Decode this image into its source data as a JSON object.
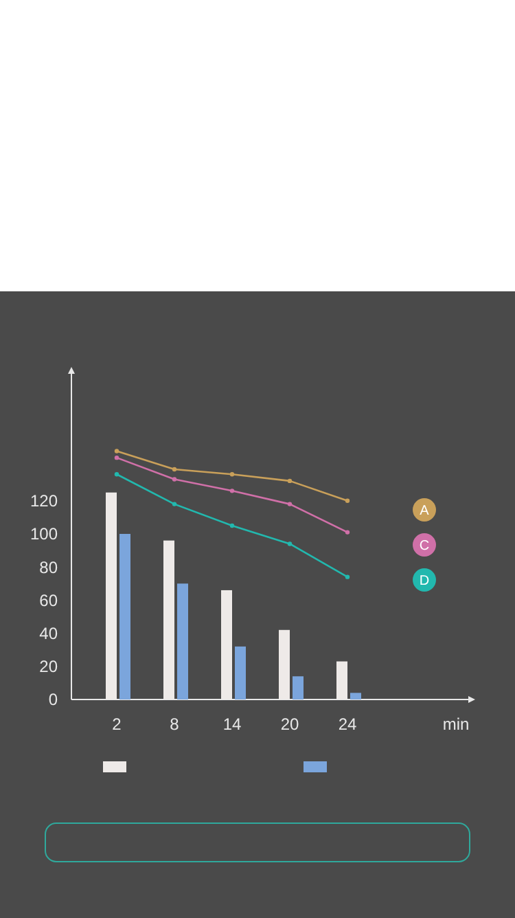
{
  "chart_data": {
    "type": "bar",
    "xlabel": "min",
    "categories": [
      "2",
      "8",
      "14",
      "20",
      "24"
    ],
    "series": [
      {
        "color": "#eeeae8",
        "values": [
          125,
          96,
          66,
          42,
          23
        ]
      },
      {
        "color": "#7ba5dc",
        "values": [
          100,
          70,
          32,
          14,
          4
        ]
      },
      {
        "type": "line",
        "name": "A",
        "color": "#c9a05a",
        "values": [
          150,
          139,
          136,
          132,
          120
        ]
      },
      {
        "type": "line",
        "name": "C",
        "color": "#d070a8",
        "values": [
          146,
          133,
          126,
          118,
          101
        ]
      },
      {
        "type": "line",
        "name": "D",
        "color": "#22b8ae",
        "values": [
          136,
          118,
          105,
          94,
          74
        ]
      }
    ],
    "ylim": [
      0,
      200
    ],
    "yticks": [
      0,
      20,
      40,
      60,
      80,
      100,
      120
    ],
    "marker": "circle",
    "legend": "right",
    "grid": false
  }
}
